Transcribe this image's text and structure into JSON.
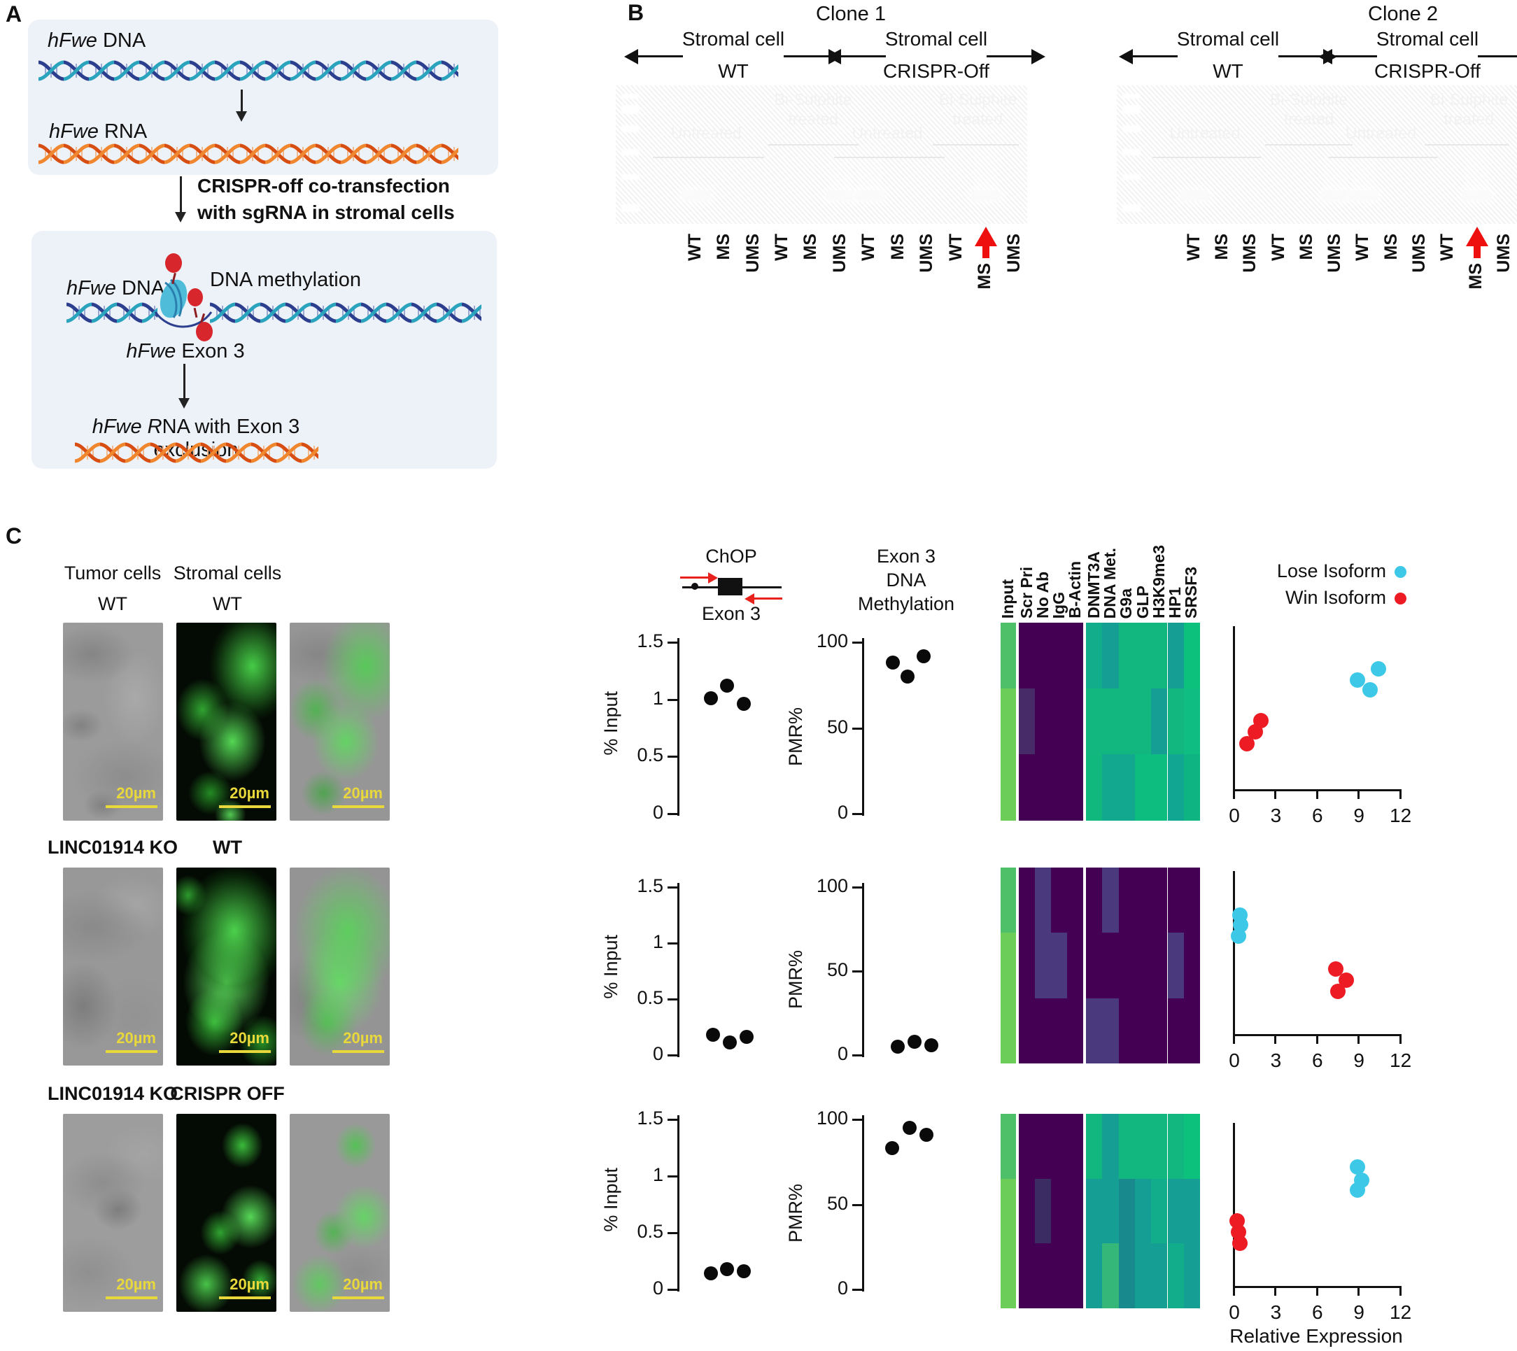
{
  "panelA": {
    "label": "A",
    "dna_top": {
      "italic": "hFwe",
      "rest": " DNA"
    },
    "rna_top": {
      "italic": "hFwe",
      "rest": " RNA"
    },
    "caption_line1": "CRISPR-off co-transfection",
    "caption_line2": "with sgRNA in stromal cells",
    "dna_bottom": {
      "italic": "hFwe",
      "rest": " DNA"
    },
    "methylation_label": "DNA methylation",
    "exon_label": {
      "italic": "hFwe",
      "rest": " Exon 3"
    },
    "result_label": {
      "italic": "hFwe R",
      "rest": "NA with Exon 3 exclusion"
    }
  },
  "panelB": {
    "label": "B",
    "clones": [
      {
        "title": "Clone 1",
        "left_top": "Stromal cell",
        "left_bottom": "WT",
        "right_top": "Stromal cell",
        "right_bottom": "CRISPR-Off",
        "untreated_1": "Untreated",
        "bisulphite_1a": "Bi-Sulphite",
        "bisulphite_1b": "treated",
        "untreated_2": "Untreated",
        "bisulphite_2a": "Bi-Sulphite",
        "bisulphite_2b": "treated",
        "lanes": [
          "WT",
          "MS",
          "UMS",
          "WT",
          "MS",
          "UMS",
          "WT",
          "MS",
          "UMS",
          "WT",
          "MS",
          "UMS"
        ],
        "bright_lanes": [
          0,
          5,
          6,
          10
        ],
        "smear_lanes": [
          5,
          6,
          10
        ],
        "arrow_lane": 10
      },
      {
        "title": "Clone 2",
        "left_top": "Stromal cell",
        "left_bottom": "WT",
        "right_top": "Stromal cell",
        "right_bottom": "CRISPR-Off",
        "untreated_1": "Untreated",
        "bisulphite_1a": "Bi-Sulphite",
        "bisulphite_1b": "treated",
        "untreated_2": "Untreated",
        "bisulphite_2a": "Bi-Sulphite",
        "bisulphite_2b": "treated",
        "lanes": [
          "WT",
          "MS",
          "UMS",
          "WT",
          "MS",
          "UMS",
          "WT",
          "MS",
          "UMS",
          "WT",
          "MS",
          "UMS"
        ],
        "bright_lanes": [
          0,
          5,
          6,
          10
        ],
        "smear_lanes": [
          5,
          6,
          10
        ],
        "arrow_lane": 10
      }
    ]
  },
  "panelC": {
    "label": "C",
    "col_headers": [
      "Tumor cells",
      "Stromal cells"
    ],
    "microscopy_rows": [
      {
        "left": "WT",
        "mid": "WT",
        "mid_bold": false
      },
      {
        "left": "LINC01914 KO",
        "mid": "WT",
        "mid_bold": false
      },
      {
        "left": "LINC01914 KO",
        "mid": "CRISPR OFF",
        "mid_bold": true
      }
    ],
    "scale_label": "20µm",
    "chop": {
      "title": "ChOP",
      "exon": "Exon 3"
    },
    "meth_title": [
      "Exon 3",
      "DNA",
      "Methylation"
    ],
    "input_axis": {
      "label": "% Input",
      "max": 1.5,
      "ticks": [
        "1.5",
        "1",
        "0.5",
        "0"
      ]
    },
    "pmr_axis": {
      "label": "PMR%",
      "max": 100,
      "ticks": [
        "100",
        "50",
        "0"
      ]
    },
    "heatmap_columns": [
      "Input",
      "Scr Pri",
      "No Ab",
      "IgG",
      "B-Actin",
      "DNMT3A",
      "DNA Met.",
      "G9a",
      "GLP",
      "H3K9me3",
      "HP1",
      "SRSF3"
    ],
    "legend": [
      {
        "label": "Lose Isoform",
        "color": "#3cc8e6"
      },
      {
        "label": "Win Isoform",
        "color": "#ed1c24"
      }
    ],
    "expression_axis": {
      "ticks": [
        "0",
        "3",
        "6",
        "9",
        "12"
      ],
      "max": 12,
      "label": "Relative Expression"
    },
    "rows": [
      {
        "input_points": [
          [
            0.28,
            1.01
          ],
          [
            0.42,
            1.12
          ],
          [
            0.56,
            0.96
          ]
        ],
        "pmr_points": [
          [
            0.26,
            88
          ],
          [
            0.38,
            80
          ],
          [
            0.52,
            92
          ]
        ],
        "lose": [
          [
            9.0,
            0.67
          ],
          [
            9.9,
            0.61
          ],
          [
            10.5,
            0.74
          ]
        ],
        "win": [
          [
            1.0,
            0.28
          ],
          [
            1.6,
            0.35
          ],
          [
            2.0,
            0.42
          ]
        ],
        "heatmap": [
          [
            "#4fc06a",
            "#440154",
            "#440154",
            "#440154",
            "#440154",
            "#12ad8a",
            "#159e93",
            "#12b77f",
            "#12b77f",
            "#12b77f",
            "#159e93",
            "#0cc17c"
          ],
          [
            "#6ccd59",
            "#472a68",
            "#440154",
            "#440154",
            "#440154",
            "#12b77f",
            "#12b77f",
            "#12b77f",
            "#12b77f",
            "#159e93",
            "#12b77f",
            "#0fbc81"
          ],
          [
            "#6ccd59",
            "#440154",
            "#440154",
            "#440154",
            "#440154",
            "#10b87d",
            "#12a890",
            "#12a890",
            "#0cbd7f",
            "#0cbd7f",
            "#11a691",
            "#0eb583"
          ]
        ]
      },
      {
        "input_points": [
          [
            0.3,
            0.18
          ],
          [
            0.44,
            0.11
          ],
          [
            0.58,
            0.16
          ]
        ],
        "pmr_points": [
          [
            0.3,
            5
          ],
          [
            0.44,
            8
          ],
          [
            0.58,
            6
          ]
        ],
        "lose": [
          [
            0.5,
            0.73
          ],
          [
            0.55,
            0.67
          ],
          [
            0.4,
            0.6
          ]
        ],
        "win": [
          [
            7.4,
            0.4
          ],
          [
            8.2,
            0.33
          ],
          [
            7.6,
            0.26
          ]
        ],
        "heatmap": [
          [
            "#4fc06a",
            "#440154",
            "#4a3a7d",
            "#440154",
            "#440154",
            "#440154",
            "#4a3a7d",
            "#440154",
            "#440154",
            "#440154",
            "#440154",
            "#440154"
          ],
          [
            "#6ccd59",
            "#440154",
            "#4a3a7d",
            "#4a3a7d",
            "#440154",
            "#440154",
            "#440154",
            "#440154",
            "#440154",
            "#440154",
            "#4a3a7d",
            "#440154"
          ],
          [
            "#6ccd59",
            "#440154",
            "#440154",
            "#440154",
            "#440154",
            "#4a3a7d",
            "#4a3a7d",
            "#440154",
            "#440154",
            "#440154",
            "#440154",
            "#440154"
          ]
        ]
      },
      {
        "input_points": [
          [
            0.28,
            0.14
          ],
          [
            0.42,
            0.18
          ],
          [
            0.56,
            0.16
          ]
        ],
        "pmr_points": [
          [
            0.25,
            83
          ],
          [
            0.4,
            95
          ],
          [
            0.54,
            91
          ]
        ],
        "lose": [
          [
            9.0,
            0.73
          ],
          [
            9.3,
            0.65
          ],
          [
            9.0,
            0.59
          ]
        ],
        "win": [
          [
            0.3,
            0.4
          ],
          [
            0.4,
            0.33
          ],
          [
            0.5,
            0.26
          ]
        ],
        "heatmap": [
          [
            "#4fc06a",
            "#440154",
            "#440154",
            "#440154",
            "#440154",
            "#12b77f",
            "#159e93",
            "#12b77f",
            "#12b77f",
            "#12b77f",
            "#12b77f",
            "#0cc17c"
          ],
          [
            "#6ccd59",
            "#440154",
            "#3b2c63",
            "#440154",
            "#440154",
            "#159e93",
            "#159e93",
            "#18898d",
            "#159e93",
            "#12ad8a",
            "#159e93",
            "#159e93"
          ],
          [
            "#6ccd59",
            "#440154",
            "#440154",
            "#440154",
            "#440154",
            "#159e93",
            "#35b779",
            "#18898d",
            "#159e93",
            "#159e93",
            "#12ad8a",
            "#159e93"
          ]
        ]
      }
    ]
  },
  "chart_data": [
    {
      "type": "scatter",
      "title": "ChOP Exon 3",
      "ylabel": "% Input",
      "ylim": [
        0,
        1.5
      ],
      "series": [
        {
          "name": "WT",
          "values": [
            1.01,
            1.12,
            0.96
          ]
        },
        {
          "name": "LINC01914 KO / WT",
          "values": [
            0.18,
            0.11,
            0.16
          ]
        },
        {
          "name": "LINC01914 KO / CRISPR OFF",
          "values": [
            0.14,
            0.18,
            0.16
          ]
        }
      ]
    },
    {
      "type": "scatter",
      "title": "Exon 3 DNA Methylation",
      "ylabel": "PMR%",
      "ylim": [
        0,
        100
      ],
      "series": [
        {
          "name": "WT",
          "values": [
            88,
            80,
            92
          ]
        },
        {
          "name": "LINC01914 KO / WT",
          "values": [
            5,
            8,
            6
          ]
        },
        {
          "name": "LINC01914 KO / CRISPR OFF",
          "values": [
            83,
            95,
            91
          ]
        }
      ]
    },
    {
      "type": "heatmap",
      "columns": [
        "Input",
        "Scr Pri",
        "No Ab",
        "IgG",
        "B-Actin",
        "DNMT3A",
        "DNA Met.",
        "G9a",
        "GLP",
        "H3K9me3",
        "HP1",
        "SRSF3"
      ],
      "groups": [
        {
          "name": "WT",
          "pattern": "Input high; Scr Pri-B-Actin low; DNMT3A-SRSF3 high"
        },
        {
          "name": "LINC01914 KO / WT",
          "pattern": "Input high; all antibody columns low"
        },
        {
          "name": "LINC01914 KO / CRISPR OFF",
          "pattern": "Input high; Scr Pri-B-Actin low; DNMT3A-SRSF3 high"
        }
      ]
    },
    {
      "type": "scatter",
      "xlabel": "Relative Expression",
      "xlim": [
        0,
        12
      ],
      "series": [
        {
          "name": "Lose Isoform",
          "color": "#3cc8e6",
          "x_by_row": [
            [
              9.0,
              9.9,
              10.5
            ],
            [
              0.4,
              0.5,
              0.55
            ],
            [
              9.0,
              9.3,
              9.0
            ]
          ]
        },
        {
          "name": "Win Isoform",
          "color": "#ed1c24",
          "x_by_row": [
            [
              1.0,
              1.6,
              2.0
            ],
            [
              7.4,
              7.6,
              8.2
            ],
            [
              0.3,
              0.4,
              0.5
            ]
          ]
        }
      ]
    }
  ]
}
